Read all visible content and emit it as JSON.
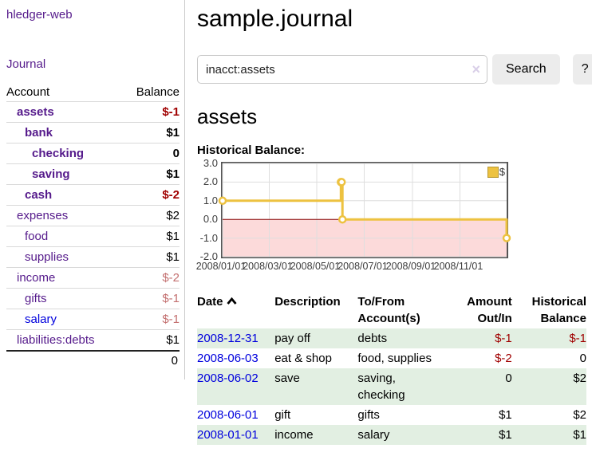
{
  "colors": {
    "link_visited_purple": "#551a8b",
    "link_blue": "#0000dd",
    "negative_strong": "#a00000",
    "negative_soft": "#c36f6f",
    "row_highlight_green": "#e2efe2",
    "button_gray": "#ececec",
    "chart_line_gold": "#edc240",
    "chart_negative_fill_pink": "#fcdada",
    "chart_zero_line": "#8b0000"
  },
  "sidebar": {
    "app_title": "hledger-web",
    "journal_label": "Journal",
    "table": {
      "account_header": "Account",
      "balance_header": "Balance",
      "accounts": [
        {
          "name": "assets",
          "depth": 1,
          "bold": true,
          "balance": "$-1",
          "balance_class": "neg-strong"
        },
        {
          "name": "bank",
          "depth": 2,
          "bold": true,
          "balance": "$1"
        },
        {
          "name": "checking",
          "depth": 3,
          "bold": true,
          "balance": "0"
        },
        {
          "name": "saving",
          "depth": 3,
          "bold": true,
          "balance": "$1"
        },
        {
          "name": "cash",
          "depth": 2,
          "bold": true,
          "balance": "$-2",
          "balance_class": "neg-strong"
        },
        {
          "name": "expenses",
          "depth": 1,
          "bold": false,
          "balance": "$2"
        },
        {
          "name": "food",
          "depth": 2,
          "bold": false,
          "balance": "$1"
        },
        {
          "name": "supplies",
          "depth": 2,
          "bold": false,
          "balance": "$1"
        },
        {
          "name": "income",
          "depth": 1,
          "bold": false,
          "balance": "$-2",
          "balance_class": "neg-soft"
        },
        {
          "name": "gifts",
          "depth": 2,
          "bold": false,
          "balance": "$-1",
          "balance_class": "neg-soft"
        },
        {
          "name": "salary",
          "depth": 2,
          "bold": false,
          "balance": "$-1",
          "balance_class": "neg-soft",
          "link": "blue"
        },
        {
          "name": "liabilities:debts",
          "depth": 1,
          "bold": false,
          "balance": "$1"
        }
      ],
      "total": "0"
    }
  },
  "header": {
    "title": "sample.journal"
  },
  "search": {
    "value": "inacct:assets",
    "clear_icon": "×",
    "button_label": "Search",
    "help_label": "?"
  },
  "section": {
    "title": "assets",
    "chart_label": "Historical Balance:"
  },
  "chart_data": {
    "type": "line",
    "step": true,
    "title": "Historical Balance:",
    "xlim": [
      "2008-01-01",
      "2008-12-31"
    ],
    "ylim": [
      -2,
      3
    ],
    "y_ticks": [
      3.0,
      2.0,
      1.0,
      0.0,
      -1.0,
      -2.0
    ],
    "x_ticks": [
      {
        "date": "2008-01-01",
        "label": "2008/01/01"
      },
      {
        "date": "2008-03-01",
        "label": "2008/03/01"
      },
      {
        "date": "2008-05-01",
        "label": "2008/05/01"
      },
      {
        "date": "2008-07-01",
        "label": "2008/07/01"
      },
      {
        "date": "2008-09-01",
        "label": "2008/09/01"
      },
      {
        "date": "2008-11-01",
        "label": "2008/11/01"
      }
    ],
    "series": [
      {
        "name": "$",
        "color": "#edc240",
        "points": [
          [
            "2008-01-01",
            1
          ],
          [
            "2008-06-01",
            2
          ],
          [
            "2008-06-02",
            2
          ],
          [
            "2008-06-03",
            0
          ],
          [
            "2008-12-31",
            -1
          ]
        ]
      }
    ],
    "legend": {
      "label": "$",
      "swatch_color": "#edc240",
      "position": "top-right"
    },
    "grid": true,
    "negative_fill": "#fcdada",
    "zero_line_color": "#8b0000"
  },
  "register": {
    "headers": [
      {
        "key": "date",
        "lines": [
          "Date"
        ],
        "align": "left",
        "sort": "asc",
        "sortable": true
      },
      {
        "key": "description",
        "lines": [
          "Description"
        ],
        "align": "left"
      },
      {
        "key": "accounts",
        "lines": [
          "To/From",
          "Account(s)"
        ],
        "align": "left"
      },
      {
        "key": "amount",
        "lines": [
          "Amount",
          "Out/In"
        ],
        "align": "right"
      },
      {
        "key": "balance",
        "lines": [
          "Historical",
          "Balance"
        ],
        "align": "right"
      }
    ],
    "rows": [
      {
        "date": "2008-12-31",
        "description": "pay off",
        "accounts": [
          "debts"
        ],
        "amount": "$-1",
        "balance": "$-1"
      },
      {
        "date": "2008-06-03",
        "description": "eat & shop",
        "accounts": [
          "food, supplies"
        ],
        "amount": "$-2",
        "balance": "0"
      },
      {
        "date": "2008-06-02",
        "description": "save",
        "accounts": [
          "saving,",
          "checking"
        ],
        "amount": "0",
        "balance": "$2"
      },
      {
        "date": "2008-06-01",
        "description": "gift",
        "accounts": [
          "gifts"
        ],
        "amount": "$1",
        "balance": "$2"
      },
      {
        "date": "2008-01-01",
        "description": "income",
        "accounts": [
          "salary"
        ],
        "amount": "$1",
        "balance": "$1"
      }
    ]
  }
}
